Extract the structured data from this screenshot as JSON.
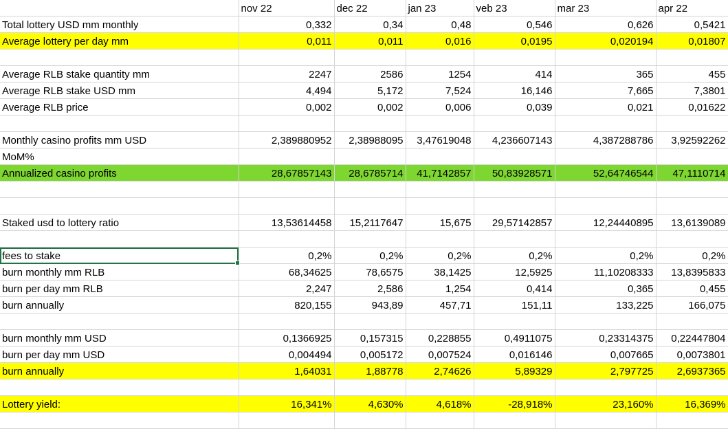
{
  "columns": [
    "",
    "nov 22",
    "dec 22",
    "jan 23",
    "veb 23",
    "mar 23",
    "apr 22"
  ],
  "colors": {
    "yellow": "#ffff00",
    "green": "#7ed631",
    "gridline": "#d4d4d4",
    "selection": "#217346"
  },
  "rows": [
    {
      "label": "Total lottery USD mm monthly",
      "values": [
        "0,332",
        "0,34",
        "0,48",
        "0,546",
        "0,626",
        "0,5421"
      ],
      "fill": ""
    },
    {
      "label": "Average lottery per day mm",
      "values": [
        "0,011",
        "0,011",
        "0,016",
        "0,0195",
        "0,020194",
        "0,01807"
      ],
      "fill": "yellow"
    },
    {
      "label": "",
      "values": [
        "",
        "",
        "",
        "",
        "",
        ""
      ],
      "fill": ""
    },
    {
      "label": "Average RLB stake quantity mm",
      "values": [
        "2247",
        "2586",
        "1254",
        "414",
        "365",
        "455"
      ],
      "fill": ""
    },
    {
      "label": "Average RLB stake USD mm",
      "values": [
        "4,494",
        "5,172",
        "7,524",
        "16,146",
        "7,665",
        "7,3801"
      ],
      "fill": ""
    },
    {
      "label": "Average RLB price",
      "values": [
        "0,002",
        "0,002",
        "0,006",
        "0,039",
        "0,021",
        "0,01622"
      ],
      "fill": ""
    },
    {
      "label": "",
      "values": [
        "",
        "",
        "",
        "",
        "",
        ""
      ],
      "fill": ""
    },
    {
      "label": "Monthly casino profits mm USD",
      "values": [
        "2,389880952",
        "2,38988095",
        "3,47619048",
        "4,236607143",
        "4,387288786",
        "3,92592262"
      ],
      "fill": ""
    },
    {
      "label": "MoM%",
      "values": [
        "",
        "",
        "",
        "",
        "",
        ""
      ],
      "fill": ""
    },
    {
      "label": "Annualized casino profits",
      "values": [
        "28,67857143",
        "28,6785714",
        "41,7142857",
        "50,83928571",
        "52,64746544",
        "47,1110714"
      ],
      "fill": "green"
    },
    {
      "label": "",
      "values": [
        "",
        "",
        "",
        "",
        "",
        ""
      ],
      "fill": ""
    },
    {
      "label": "",
      "values": [
        "",
        "",
        "",
        "",
        "",
        ""
      ],
      "fill": ""
    },
    {
      "label": "Staked usd to lottery ratio",
      "values": [
        "13,53614458",
        "15,2117647",
        "15,675",
        "29,57142857",
        "12,24440895",
        "13,6139089"
      ],
      "fill": ""
    },
    {
      "label": "",
      "values": [
        "",
        "",
        "",
        "",
        "",
        ""
      ],
      "fill": ""
    },
    {
      "label": "fees to stake",
      "values": [
        "0,2%",
        "0,2%",
        "0,2%",
        "0,2%",
        "0,2%",
        "0,2%"
      ],
      "fill": "",
      "selected": true
    },
    {
      "label": "burn monthly mm RLB",
      "values": [
        "68,34625",
        "78,6575",
        "38,1425",
        "12,5925",
        "11,10208333",
        "13,8395833"
      ],
      "fill": ""
    },
    {
      "label": "burn per day mm RLB",
      "values": [
        "2,247",
        "2,586",
        "1,254",
        "0,414",
        "0,365",
        "0,455"
      ],
      "fill": ""
    },
    {
      "label": "burn annually",
      "values": [
        "820,155",
        "943,89",
        "457,71",
        "151,11",
        "133,225",
        "166,075"
      ],
      "fill": ""
    },
    {
      "label": "",
      "values": [
        "",
        "",
        "",
        "",
        "",
        ""
      ],
      "fill": ""
    },
    {
      "label": "burn monthly mm USD",
      "values": [
        "0,1366925",
        "0,157315",
        "0,228855",
        "0,4911075",
        "0,23314375",
        "0,22447804"
      ],
      "fill": ""
    },
    {
      "label": "burn per day mm USD",
      "values": [
        "0,004494",
        "0,005172",
        "0,007524",
        "0,016146",
        "0,007665",
        "0,0073801"
      ],
      "fill": ""
    },
    {
      "label": "burn annually",
      "values": [
        "1,64031",
        "1,88778",
        "2,74626",
        "5,89329",
        "2,797725",
        "2,6937365"
      ],
      "fill": "yellow"
    },
    {
      "label": "",
      "values": [
        "",
        "",
        "",
        "",
        "",
        ""
      ],
      "fill": ""
    },
    {
      "label": "Lottery yield:",
      "values": [
        "16,341%",
        "4,630%",
        "4,618%",
        "-28,918%",
        "23,160%",
        "16,369%"
      ],
      "fill": "yellow"
    },
    {
      "label": "",
      "values": [
        "",
        "",
        "",
        "",
        "",
        ""
      ],
      "fill": ""
    }
  ]
}
